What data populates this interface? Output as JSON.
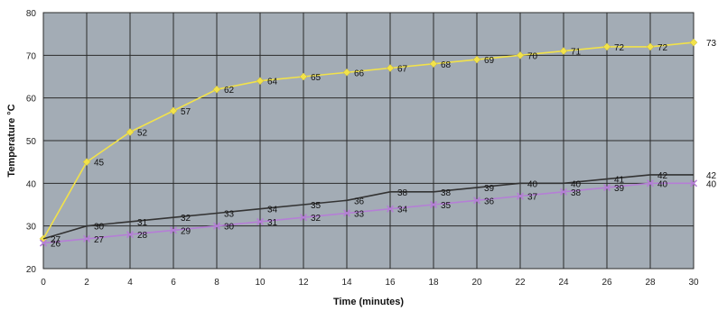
{
  "chart_data": {
    "type": "line",
    "title": "",
    "xlabel": "Time (minutes)",
    "ylabel": "Temperature °C",
    "xlim": [
      0,
      30
    ],
    "ylim": [
      20,
      80
    ],
    "x_ticks": [
      0,
      2,
      4,
      6,
      8,
      10,
      12,
      14,
      16,
      18,
      20,
      22,
      24,
      26,
      28,
      30
    ],
    "y_ticks": [
      20,
      30,
      40,
      50,
      60,
      70,
      80
    ],
    "x_tick_labels": [
      "0",
      "2",
      "4",
      "6",
      "8",
      "10",
      "12",
      "14",
      "16",
      "18",
      "20",
      "22",
      "24",
      "26",
      "28",
      "30"
    ],
    "y_tick_labels": [
      "20",
      "30",
      "40",
      "50",
      "60",
      "70",
      "80"
    ],
    "grid": true,
    "legend": "none",
    "plot_background": "#a3acb5",
    "grid_color": "#2b2b2b",
    "series": [
      {
        "color": "#f2e24a",
        "marker": "diamond",
        "x": [
          0,
          2,
          4,
          6,
          8,
          10,
          12,
          14,
          16,
          18,
          20,
          22,
          24,
          26,
          28,
          30
        ],
        "values": [
          27,
          45,
          52,
          57,
          62,
          64,
          65,
          66,
          67,
          68,
          69,
          70,
          71,
          72,
          72,
          73
        ],
        "labels": [
          "",
          "45",
          "52",
          "57",
          "62",
          "64",
          "65",
          "66",
          "67",
          "68",
          "69",
          "70",
          "71",
          "72",
          "72",
          "73"
        ]
      },
      {
        "color": "#333333",
        "marker": "none",
        "x": [
          0,
          2,
          4,
          6,
          8,
          10,
          12,
          14,
          16,
          18,
          20,
          22,
          24,
          26,
          28,
          30
        ],
        "values": [
          27,
          30,
          31,
          32,
          33,
          34,
          35,
          36,
          38,
          38,
          39,
          40,
          40,
          41,
          42,
          42
        ],
        "labels": [
          "27",
          "30",
          "31",
          "32",
          "33",
          "34",
          "35",
          "36",
          "38",
          "38",
          "39",
          "40",
          "40",
          "41",
          "42",
          "42"
        ]
      },
      {
        "color": "#b57ed6",
        "marker": "x",
        "x": [
          0,
          2,
          4,
          6,
          8,
          10,
          12,
          14,
          16,
          18,
          20,
          22,
          24,
          26,
          28,
          30
        ],
        "values": [
          26,
          27,
          28,
          29,
          30,
          31,
          32,
          33,
          34,
          35,
          36,
          37,
          38,
          39,
          40,
          40
        ],
        "labels": [
          "26",
          "27",
          "28",
          "29",
          "30",
          "31",
          "32",
          "33",
          "34",
          "35",
          "36",
          "37",
          "38",
          "39",
          "40",
          "40"
        ]
      }
    ]
  }
}
